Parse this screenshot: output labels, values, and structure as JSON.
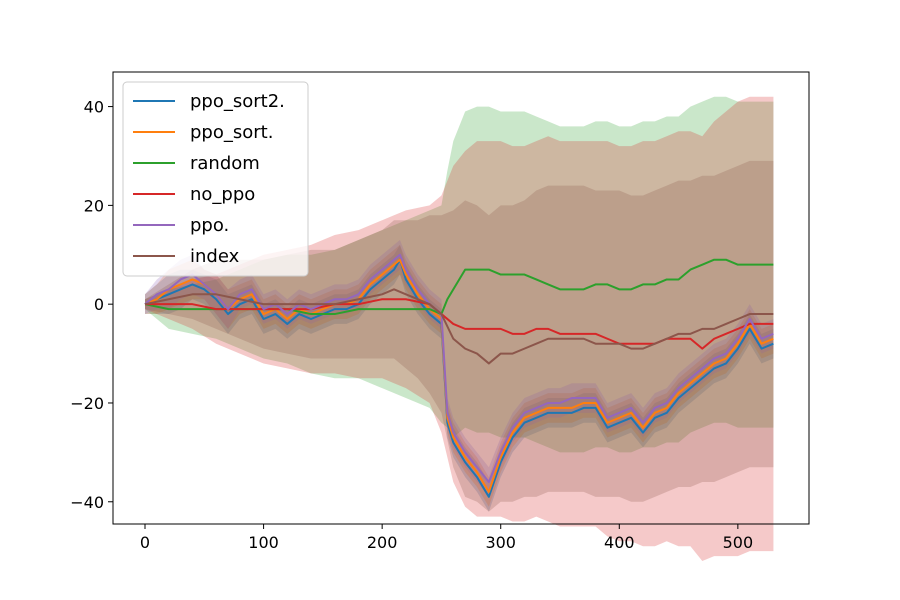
{
  "chart_data": {
    "type": "line",
    "title": "",
    "xlabel": "",
    "ylabel": "",
    "xlim": [
      -27,
      560
    ],
    "ylim": [
      -44.5,
      47
    ],
    "xticks": [
      0,
      100,
      200,
      300,
      400,
      500
    ],
    "yticks": [
      -40,
      -20,
      0,
      20,
      40
    ],
    "xtick_labels": [
      "0",
      "100",
      "200",
      "300",
      "400",
      "500"
    ],
    "ytick_labels": [
      "−40",
      "−20",
      "0",
      "20",
      "40"
    ],
    "grid": false,
    "legend_position": "top-left",
    "series": [
      {
        "name": "ppo_sort2.",
        "color": "#1f77b4",
        "x": [
          0,
          10,
          20,
          30,
          40,
          50,
          60,
          70,
          80,
          90,
          100,
          110,
          120,
          130,
          140,
          150,
          160,
          170,
          180,
          190,
          200,
          210,
          215,
          220,
          230,
          240,
          250,
          255,
          260,
          270,
          280,
          290,
          300,
          310,
          320,
          330,
          340,
          350,
          360,
          370,
          380,
          390,
          400,
          410,
          420,
          430,
          440,
          450,
          460,
          470,
          480,
          490,
          500,
          510,
          520,
          530
        ],
        "y": [
          0,
          1,
          2,
          3,
          4,
          3,
          1,
          -2,
          0,
          1,
          -3,
          -2,
          -4,
          -2,
          -3,
          -2,
          -1,
          -1,
          0,
          3,
          5,
          7,
          9,
          5,
          1,
          -2,
          -4,
          -24,
          -28,
          -32,
          -35,
          -39,
          -32,
          -27,
          -24,
          -23,
          -22,
          -22,
          -22,
          -21,
          -21,
          -25,
          -24,
          -23,
          -26,
          -23,
          -22,
          -19,
          -17,
          -15,
          -13,
          -12,
          -9,
          -5,
          -9,
          -8
        ],
        "band": [
          2,
          3,
          4,
          4,
          3,
          3,
          4,
          4,
          3,
          3,
          3,
          3,
          3,
          3,
          3,
          3,
          3,
          3,
          3,
          3,
          3,
          3,
          3,
          3,
          3,
          3,
          3,
          3,
          3,
          3,
          3,
          3,
          3,
          3,
          3,
          3,
          3,
          3,
          3,
          3,
          3,
          3,
          3,
          3,
          3,
          3,
          3,
          3,
          3,
          3,
          3,
          3,
          3,
          3,
          3,
          3
        ]
      },
      {
        "name": "ppo_sort.",
        "color": "#ff7f0e",
        "x": [
          0,
          10,
          20,
          30,
          40,
          50,
          60,
          70,
          80,
          90,
          100,
          110,
          120,
          130,
          140,
          150,
          160,
          170,
          180,
          190,
          200,
          210,
          215,
          220,
          230,
          240,
          250,
          255,
          260,
          270,
          280,
          290,
          300,
          310,
          320,
          330,
          340,
          350,
          360,
          370,
          380,
          390,
          400,
          410,
          420,
          430,
          440,
          450,
          460,
          470,
          480,
          490,
          500,
          510,
          520,
          530
        ],
        "y": [
          0,
          1,
          3,
          4,
          5,
          4,
          2,
          -1,
          1,
          2,
          -2,
          -1,
          -3,
          -1,
          -2,
          -1,
          0,
          0,
          1,
          4,
          6,
          8,
          9,
          6,
          2,
          -1,
          -3,
          -23,
          -27,
          -31,
          -34,
          -38,
          -31,
          -26,
          -23,
          -22,
          -21,
          -21,
          -21,
          -20,
          -20,
          -24,
          -23,
          -22,
          -25,
          -22,
          -21,
          -18,
          -16,
          -14,
          -12,
          -11,
          -8,
          -4,
          -8,
          -7
        ],
        "band": [
          2,
          3,
          4,
          4,
          4,
          3,
          4,
          4,
          3,
          3,
          3,
          3,
          3,
          3,
          3,
          3,
          3,
          3,
          3,
          3,
          3,
          3,
          3,
          3,
          3,
          3,
          3,
          3,
          3,
          3,
          3,
          3,
          3,
          3,
          3,
          3,
          3,
          3,
          3,
          3,
          3,
          3,
          3,
          3,
          3,
          3,
          3,
          3,
          3,
          3,
          3,
          3,
          3,
          3,
          3,
          3
        ]
      },
      {
        "name": "random",
        "color": "#2ca02c",
        "x": [
          0,
          20,
          40,
          60,
          80,
          100,
          120,
          140,
          160,
          180,
          200,
          220,
          240,
          250,
          255,
          260,
          270,
          280,
          290,
          300,
          310,
          320,
          330,
          340,
          350,
          360,
          370,
          380,
          390,
          400,
          410,
          420,
          430,
          440,
          450,
          460,
          470,
          480,
          490,
          500,
          510,
          520,
          530
        ],
        "y": [
          0,
          -1,
          -1,
          -1,
          -1,
          -1,
          -1,
          -2,
          -2,
          -1,
          -1,
          -1,
          -1,
          -2,
          1,
          3,
          7,
          7,
          7,
          6,
          6,
          6,
          5,
          4,
          3,
          3,
          3,
          4,
          4,
          3,
          3,
          4,
          4,
          5,
          5,
          7,
          8,
          9,
          9,
          8,
          8,
          8,
          8
        ],
        "band": [
          1,
          4,
          5,
          6,
          8,
          10,
          11,
          12,
          13,
          14,
          16,
          18,
          20,
          22,
          26,
          30,
          32,
          33,
          33,
          33,
          33,
          33,
          33,
          33,
          33,
          33,
          33,
          33,
          33,
          33,
          33,
          33,
          33,
          33,
          33,
          33,
          33,
          33,
          33,
          33,
          33,
          33,
          33
        ]
      },
      {
        "name": "no_ppo",
        "color": "#d62728",
        "x": [
          0,
          20,
          40,
          60,
          80,
          100,
          120,
          140,
          160,
          180,
          200,
          210,
          220,
          240,
          250,
          260,
          270,
          280,
          290,
          300,
          310,
          320,
          330,
          340,
          350,
          360,
          370,
          380,
          390,
          400,
          410,
          420,
          430,
          440,
          450,
          460,
          470,
          480,
          490,
          500,
          510,
          520,
          530
        ],
        "y": [
          0,
          0,
          0,
          -1,
          -1,
          -1,
          -1,
          -1,
          0,
          0,
          1,
          1,
          1,
          0,
          -2,
          -4,
          -5,
          -5,
          -5,
          -5,
          -6,
          -6,
          -5,
          -5,
          -6,
          -6,
          -6,
          -6,
          -7,
          -8,
          -8,
          -8,
          -8,
          -7,
          -7,
          -7,
          -9,
          -7,
          -6,
          -5,
          -4,
          -4,
          -4
        ],
        "band": [
          1,
          3,
          5,
          7,
          9,
          11,
          12,
          13,
          14,
          15,
          16,
          17,
          18,
          20,
          24,
          32,
          36,
          38,
          38,
          38,
          38,
          38,
          38,
          39,
          39,
          39,
          39,
          39,
          40,
          40,
          40,
          41,
          41,
          41,
          42,
          42,
          43,
          44,
          45,
          46,
          46,
          46,
          46
        ]
      },
      {
        "name": "ppo.",
        "color": "#9467bd",
        "x": [
          0,
          10,
          20,
          30,
          40,
          50,
          60,
          70,
          80,
          90,
          100,
          110,
          120,
          130,
          140,
          150,
          160,
          170,
          180,
          190,
          200,
          210,
          215,
          220,
          230,
          240,
          250,
          255,
          260,
          270,
          280,
          290,
          300,
          310,
          320,
          330,
          340,
          350,
          360,
          370,
          380,
          390,
          400,
          410,
          420,
          430,
          440,
          450,
          460,
          470,
          480,
          490,
          500,
          510,
          520,
          530
        ],
        "y": [
          0,
          2,
          3,
          5,
          6,
          4,
          2,
          -1,
          2,
          3,
          -1,
          0,
          -2,
          0,
          -1,
          0,
          1,
          1,
          2,
          5,
          7,
          9,
          10,
          7,
          3,
          0,
          -2,
          -22,
          -26,
          -30,
          -33,
          -36,
          -30,
          -25,
          -22,
          -21,
          -20,
          -20,
          -19,
          -19,
          -19,
          -23,
          -22,
          -21,
          -24,
          -21,
          -20,
          -17,
          -15,
          -13,
          -11,
          -10,
          -7,
          -3,
          -7,
          -6
        ],
        "band": [
          2,
          3,
          4,
          4,
          4,
          3,
          4,
          4,
          3,
          3,
          3,
          3,
          3,
          3,
          3,
          3,
          3,
          3,
          3,
          3,
          3,
          3,
          3,
          3,
          3,
          3,
          3,
          3,
          3,
          3,
          3,
          3,
          3,
          3,
          3,
          3,
          3,
          3,
          3,
          3,
          3,
          3,
          3,
          3,
          3,
          3,
          3,
          3,
          3,
          3,
          3,
          3,
          3,
          3,
          3,
          3
        ]
      },
      {
        "name": "index",
        "color": "#8c564b",
        "x": [
          0,
          20,
          40,
          60,
          80,
          100,
          120,
          140,
          160,
          180,
          200,
          210,
          220,
          230,
          240,
          250,
          260,
          270,
          280,
          290,
          300,
          310,
          320,
          330,
          340,
          350,
          360,
          370,
          380,
          390,
          400,
          410,
          420,
          430,
          440,
          450,
          460,
          470,
          480,
          490,
          500,
          510,
          520,
          530
        ],
        "y": [
          0,
          1,
          2,
          2,
          1,
          0,
          0,
          0,
          0,
          1,
          2,
          3,
          2,
          1,
          0,
          -2,
          -7,
          -9,
          -10,
          -12,
          -10,
          -10,
          -9,
          -8,
          -7,
          -7,
          -7,
          -7,
          -8,
          -8,
          -8,
          -9,
          -9,
          -8,
          -7,
          -6,
          -6,
          -5,
          -5,
          -4,
          -3,
          -2,
          -2,
          -2
        ],
        "band": [
          1,
          3,
          5,
          7,
          8,
          9,
          10,
          11,
          11,
          12,
          13,
          14,
          15,
          16,
          18,
          20,
          26,
          30,
          30,
          30,
          30,
          30,
          30,
          31,
          31,
          31,
          31,
          31,
          31,
          31,
          31,
          31,
          31,
          31,
          31,
          31,
          31,
          31,
          31,
          31,
          31,
          31,
          31,
          31
        ]
      }
    ]
  }
}
